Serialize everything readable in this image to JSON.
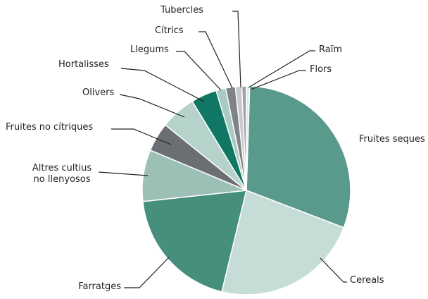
{
  "chart_data": {
    "type": "pie",
    "categories": [
      "Fruites seques",
      "Cereals",
      "Farratges",
      "Altres cultius\nno llenyosos",
      "Fruites no cítriques",
      "Olivers",
      "Hortalisses",
      "Llegums",
      "Cítrics",
      "Tubercles",
      "Raïm",
      "Flors"
    ],
    "values": [
      30.3,
      23,
      19.5,
      8,
      4.5,
      5.5,
      4,
      1.5,
      1.5,
      1,
      0.7,
      0.5
    ],
    "colors": [
      "#5a9a8c",
      "#c5ddd6",
      "#458f7c",
      "#9dc0b6",
      "#6b6e72",
      "#b5d3ca",
      "#0f7764",
      "#a9cbc1",
      "#7f8387",
      "#c7c9cc",
      "#9aa0a4",
      "#e0ece8"
    ]
  }
}
